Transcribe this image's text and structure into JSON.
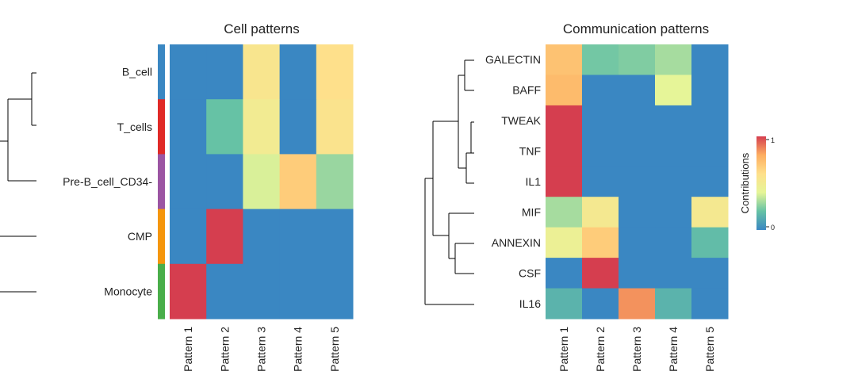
{
  "chart_data": [
    {
      "type": "heatmap",
      "title": "Cell patterns",
      "rows": [
        "B_cell",
        "T_cells",
        "Pre-B_cell_CD34-",
        "CMP",
        "Monocyte"
      ],
      "columns": [
        "Pattern 1",
        "Pattern 2",
        "Pattern 3",
        "Pattern 4",
        "Pattern 5"
      ],
      "values": [
        [
          0.0,
          0.0,
          0.55,
          0.0,
          0.6
        ],
        [
          0.0,
          0.2,
          0.5,
          0.0,
          0.57
        ],
        [
          0.0,
          0.0,
          0.38,
          0.68,
          0.28
        ],
        [
          0.0,
          1.0,
          0.0,
          0.0,
          0.0
        ],
        [
          1.0,
          0.0,
          0.0,
          0.0,
          0.0
        ]
      ],
      "row_annotation_colors": [
        "#3a87c2",
        "#e02a27",
        "#9b55a3",
        "#f5960c",
        "#4aae4a"
      ]
    },
    {
      "type": "heatmap",
      "title": "Communication patterns",
      "rows": [
        "GALECTIN",
        "BAFF",
        "TWEAK",
        "TNF",
        "IL1",
        "MIF",
        "ANNEXIN",
        "CSF",
        "IL16"
      ],
      "columns": [
        "Pattern 1",
        "Pattern 2",
        "Pattern 3",
        "Pattern 4",
        "Pattern 5"
      ],
      "values": [
        [
          0.72,
          0.22,
          0.24,
          0.3,
          0.0
        ],
        [
          0.75,
          0.0,
          0.0,
          0.4,
          0.0
        ],
        [
          1.0,
          0.0,
          0.0,
          0.0,
          0.0
        ],
        [
          1.0,
          0.0,
          0.0,
          0.0,
          0.0
        ],
        [
          1.0,
          0.0,
          0.0,
          0.0,
          0.0
        ],
        [
          0.3,
          0.52,
          0.0,
          0.0,
          0.52
        ],
        [
          0.45,
          0.68,
          0.0,
          0.0,
          0.18
        ],
        [
          0.0,
          1.0,
          0.0,
          0.0,
          0.0
        ],
        [
          0.15,
          0.0,
          0.85,
          0.15,
          0.0
        ]
      ]
    }
  ],
  "legend": {
    "title": "Contributions",
    "max_label": "1",
    "min_label": "0",
    "min": 0,
    "max": 1,
    "colors": [
      "#3a87c2",
      "#66c2a5",
      "#e6f598",
      "#fee08b",
      "#fdae61",
      "#d53e4f"
    ]
  }
}
